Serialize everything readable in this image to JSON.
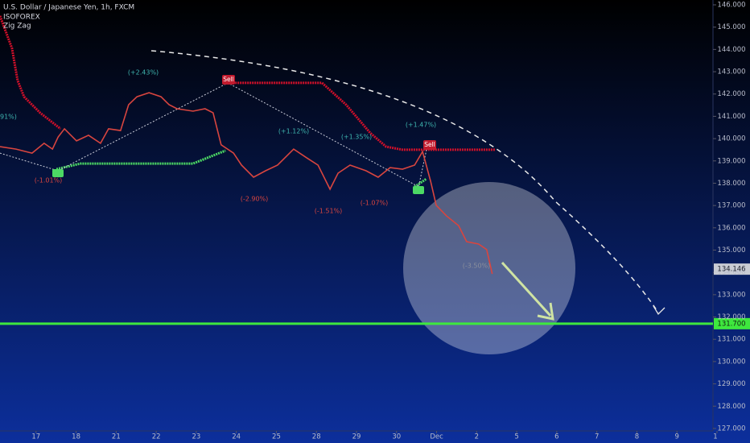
{
  "chart_data": {
    "type": "line",
    "title": "U.S. Dollar / Japanese Yen, 1h, FXCM",
    "indicators": [
      "ISOFOREX",
      "Zig Zag"
    ],
    "xlim": [
      -0.9,
      16.9
    ],
    "xticks": [
      {
        "value": 0,
        "label": "17"
      },
      {
        "value": 1,
        "label": "18"
      },
      {
        "value": 2,
        "label": "21"
      },
      {
        "value": 3,
        "label": "22"
      },
      {
        "value": 4,
        "label": "23"
      },
      {
        "value": 5,
        "label": "24"
      },
      {
        "value": 6,
        "label": "25"
      },
      {
        "value": 7,
        "label": "28"
      },
      {
        "value": 8,
        "label": "29"
      },
      {
        "value": 9,
        "label": "30"
      },
      {
        "value": 10,
        "label": "Dec"
      },
      {
        "value": 11,
        "label": "2"
      },
      {
        "value": 12,
        "label": "5"
      },
      {
        "value": 13,
        "label": "6"
      },
      {
        "value": 14,
        "label": "7"
      },
      {
        "value": 15,
        "label": "8"
      },
      {
        "value": 16,
        "label": "9"
      },
      {
        "value": 17,
        "label": "1"
      }
    ],
    "ylim": [
      126.89,
      146.217
    ],
    "yticks": [
      {
        "value": 127,
        "label": "127.000"
      },
      {
        "value": 128,
        "label": "128.000"
      },
      {
        "value": 129,
        "label": "129.000"
      },
      {
        "value": 130,
        "label": "130.000"
      },
      {
        "value": 131,
        "label": "131.000"
      },
      {
        "value": 132,
        "label": "132.000"
      },
      {
        "value": 133,
        "label": "133.000"
      },
      {
        "value": 134,
        "label": "134.000"
      },
      {
        "value": 135,
        "label": "135.000"
      },
      {
        "value": 136,
        "label": "136.000"
      },
      {
        "value": 137,
        "label": "137.000"
      },
      {
        "value": 138,
        "label": "138.000"
      },
      {
        "value": 139,
        "label": "139.000"
      },
      {
        "value": 140,
        "label": "140.000"
      },
      {
        "value": 141,
        "label": "141.000"
      },
      {
        "value": 142,
        "label": "142.000"
      },
      {
        "value": 143,
        "label": "143.000"
      },
      {
        "value": 144,
        "label": "144.000"
      },
      {
        "value": 145,
        "label": "145.000"
      },
      {
        "value": 146,
        "label": "146.000"
      }
    ],
    "price": {
      "color": "#d8453f",
      "x": [
        -0.9,
        -0.5,
        -0.1,
        0.2,
        0.41,
        0.55,
        0.71,
        1.01,
        1.31,
        1.61,
        1.81,
        2.11,
        2.31,
        2.52,
        2.82,
        3.12,
        3.32,
        3.52,
        3.92,
        4.22,
        4.42,
        4.62,
        4.93,
        5.13,
        5.43,
        5.73,
        6.03,
        6.23,
        6.43,
        6.73,
        7.04,
        7.34,
        7.54,
        7.84,
        8.24,
        8.54,
        8.84,
        9.15,
        9.45,
        9.65,
        9.85,
        9.99,
        10.25,
        10.55,
        10.75,
        11.05,
        11.25,
        11.39
      ],
      "values": [
        139.64,
        139.53,
        139.35,
        139.79,
        139.53,
        140.07,
        140.44,
        139.9,
        140.15,
        139.79,
        140.44,
        140.36,
        141.52,
        141.88,
        142.06,
        141.88,
        141.52,
        141.34,
        141.23,
        141.34,
        141.16,
        139.72,
        139.35,
        138.81,
        138.27,
        138.56,
        138.81,
        139.17,
        139.53,
        139.17,
        138.81,
        137.73,
        138.45,
        138.81,
        138.56,
        138.27,
        138.7,
        138.63,
        138.81,
        139.42,
        138.09,
        137.01,
        136.53,
        136.1,
        135.38,
        135.27,
        135.02,
        133.93
      ]
    },
    "stops": [
      {
        "color": "#d0102a",
        "x": [
          -0.9,
          -0.6,
          -0.46,
          -0.3,
          0.1,
          0.61,
          0.65,
          4.73,
          7.14,
          7.74,
          8.34,
          8.74,
          9.15,
          11.46
        ],
        "values": [
          145.5,
          144.05,
          142.6,
          141.88,
          141.16,
          140.44,
          null,
          142.5,
          142.5,
          141.52,
          140.26,
          139.64,
          139.5,
          139.5
        ]
      },
      {
        "color": "#4cd964",
        "x": [
          0.51,
          1.11,
          3.92,
          4.32,
          4.73,
          9.15,
          9.45,
          9.75
        ],
        "values": [
          138.63,
          138.88,
          138.88,
          139.17,
          139.46,
          null,
          137.84,
          138.2
        ]
      }
    ],
    "zigzag": {
      "color": "#c8cbd8",
      "x": [
        -0.9,
        0.55,
        4.79,
        9.55,
        9.75
      ],
      "values": [
        139.35,
        138.56,
        142.5,
        137.84,
        139.53
      ]
    },
    "level": {
      "value": 131.7,
      "label": "131.700",
      "color": "#3ee83e"
    },
    "last_price": {
      "value": 134.146,
      "label": "134.146"
    },
    "annotations": [
      "91%)",
      "(+2.43%)",
      "(-1.01%)",
      "(+1.12%)",
      "(+1.35%)",
      "(+1.47%)",
      "(-2.90%)",
      "(-1.51%)",
      "(-1.07%)",
      "(-3.50%)"
    ],
    "signals": [
      "Sell",
      "Sell"
    ]
  }
}
